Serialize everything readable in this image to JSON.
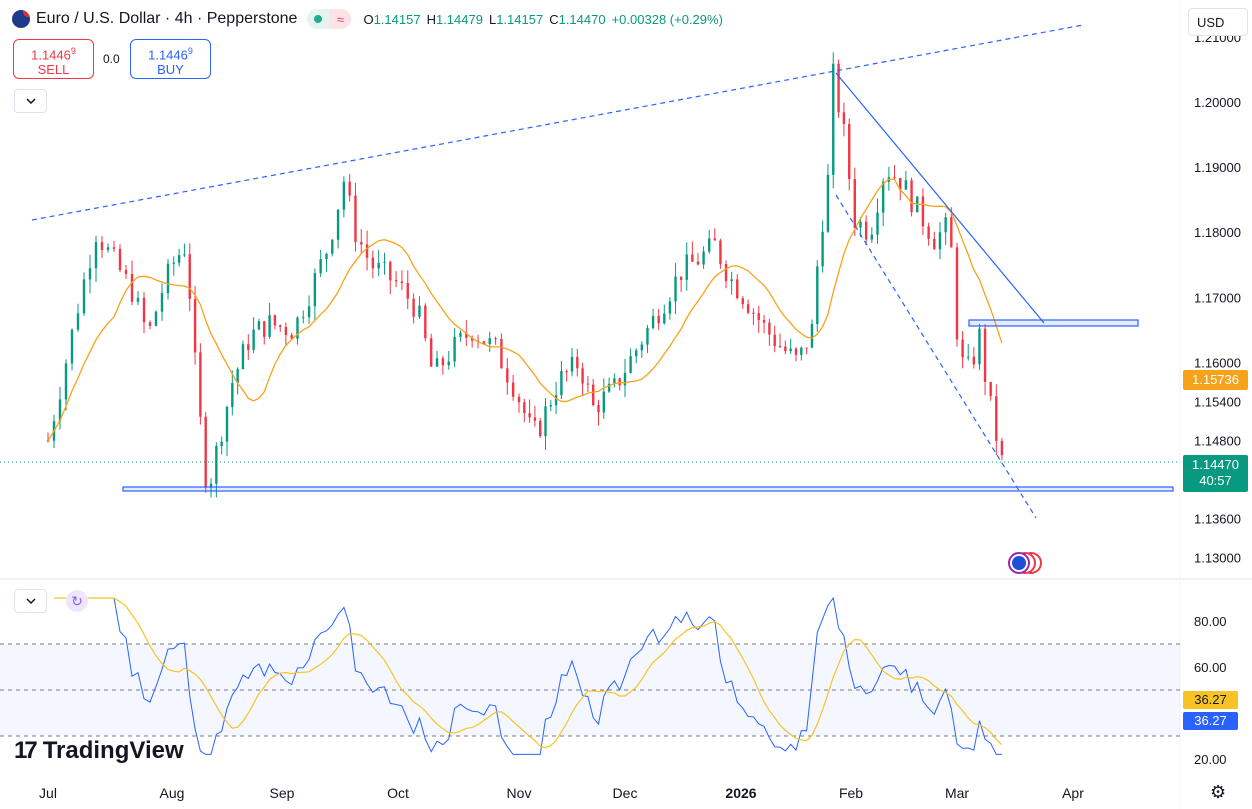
{
  "header": {
    "title": "Euro / U.S. Dollar · 4h · Pepperstone",
    "ohlc": [
      {
        "key": "O",
        "value": "1.14157"
      },
      {
        "key": "H",
        "value": "1.14479"
      },
      {
        "key": "L",
        "value": "1.14157"
      },
      {
        "key": "C",
        "value": "1.14470"
      }
    ],
    "change": "+0.00328 (+0.29%)"
  },
  "trade": {
    "sell_price": "1.1446",
    "sell_sup": "9",
    "sell_label": "SELL",
    "spread": "0.0",
    "buy_price": "1.1446",
    "buy_sup": "9",
    "buy_label": "BUY"
  },
  "currency": "USD",
  "branding": {
    "logo_mark": "17",
    "logo_text": "TradingView"
  },
  "icons": {
    "symbol": "flag-icon",
    "collapse": "chevron-down-icon",
    "settings": "gear-icon",
    "refresh": "refresh-icon"
  },
  "colors": {
    "up": "#089981",
    "down": "#f23645",
    "ma": "#f7a21b",
    "trend": "#2962ff",
    "rsi": "#2962ff",
    "rsi_ma": "#f7c325",
    "price_tag": "#089981",
    "ma_tag": "#f7a21b"
  },
  "chart_data": [
    {
      "type": "candlestick",
      "symbol": "EURUSD",
      "timeframe": "4h",
      "x_ticks": [
        "Jul",
        "Aug",
        "Sep",
        "Oct",
        "Nov",
        "Dec",
        "2026",
        "Feb",
        "Mar",
        "Apr"
      ],
      "y_ticks": [
        "1.21000",
        "1.20000",
        "1.19000",
        "1.18000",
        "1.17000",
        "1.16000",
        "1.15400",
        "1.14800",
        "1.13600",
        "1.13000"
      ],
      "ylim": [
        1.127,
        1.212
      ],
      "last_price": "1.14470",
      "countdown": "40:57",
      "ma_value": "1.15736",
      "close_path": [
        {
          "x": "Jul 01",
          "y": 1.148
        },
        {
          "x": "Jul 04",
          "y": 1.156
        },
        {
          "x": "Jul 09",
          "y": 1.17
        },
        {
          "x": "Jul 13",
          "y": 1.18
        },
        {
          "x": "Jul 17",
          "y": 1.176
        },
        {
          "x": "Jul 22",
          "y": 1.171
        },
        {
          "x": "Jul 26",
          "y": 1.164
        },
        {
          "x": "Jul 30",
          "y": 1.172
        },
        {
          "x": "Aug 02",
          "y": 1.176
        },
        {
          "x": "Aug 05",
          "y": 1.178
        },
        {
          "x": "Aug 08",
          "y": 1.156
        },
        {
          "x": "Aug 11",
          "y": 1.14
        },
        {
          "x": "Aug 13",
          "y": 1.145
        },
        {
          "x": "Aug 18",
          "y": 1.157
        },
        {
          "x": "Aug 23",
          "y": 1.164
        },
        {
          "x": "Aug 28",
          "y": 1.166
        },
        {
          "x": "Sep 04",
          "y": 1.165
        },
        {
          "x": "Sep 09",
          "y": 1.172
        },
        {
          "x": "Sep 13",
          "y": 1.178
        },
        {
          "x": "Sep 17",
          "y": 1.188
        },
        {
          "x": "Sep 20",
          "y": 1.18
        },
        {
          "x": "Sep 24",
          "y": 1.175
        },
        {
          "x": "Oct 01",
          "y": 1.172
        },
        {
          "x": "Oct 06",
          "y": 1.168
        },
        {
          "x": "Oct 10",
          "y": 1.158
        },
        {
          "x": "Oct 15",
          "y": 1.162
        },
        {
          "x": "Oct 20",
          "y": 1.165
        },
        {
          "x": "Oct 26",
          "y": 1.162
        },
        {
          "x": "Oct 31",
          "y": 1.156
        },
        {
          "x": "Nov 04",
          "y": 1.15
        },
        {
          "x": "Nov 06",
          "y": 1.149
        },
        {
          "x": "Nov 12",
          "y": 1.157
        },
        {
          "x": "Nov 18",
          "y": 1.16
        },
        {
          "x": "Nov 22",
          "y": 1.153
        },
        {
          "x": "Nov 28",
          "y": 1.156
        },
        {
          "x": "Dec 04",
          "y": 1.162
        },
        {
          "x": "Dec 10",
          "y": 1.168
        },
        {
          "x": "Dec 16",
          "y": 1.174
        },
        {
          "x": "Dec 21",
          "y": 1.176
        },
        {
          "x": "Dec 25",
          "y": 1.178
        },
        {
          "x": "Dec 29",
          "y": 1.173
        },
        {
          "x": "Jan 02",
          "y": 1.17
        },
        {
          "x": "Jan 08",
          "y": 1.165
        },
        {
          "x": "Jan 13",
          "y": 1.162
        },
        {
          "x": "Jan 17",
          "y": 1.16
        },
        {
          "x": "Jan 21",
          "y": 1.165
        },
        {
          "x": "Jan 23",
          "y": 1.178
        },
        {
          "x": "Jan 26",
          "y": 1.19
        },
        {
          "x": "Jan 27",
          "y": 1.204
        },
        {
          "x": "Jan 30",
          "y": 1.195
        },
        {
          "x": "Feb 02",
          "y": 1.182
        },
        {
          "x": "Feb 06",
          "y": 1.18
        },
        {
          "x": "Feb 10",
          "y": 1.19
        },
        {
          "x": "Feb 14",
          "y": 1.188
        },
        {
          "x": "Feb 19",
          "y": 1.183
        },
        {
          "x": "Feb 23",
          "y": 1.179
        },
        {
          "x": "Feb 27",
          "y": 1.181
        },
        {
          "x": "Mar 01",
          "y": 1.165
        },
        {
          "x": "Mar 03",
          "y": 1.158
        },
        {
          "x": "Mar 05",
          "y": 1.16
        },
        {
          "x": "Mar 07",
          "y": 1.164
        },
        {
          "x": "Mar 09",
          "y": 1.156
        },
        {
          "x": "Mar 11",
          "y": 1.15
        },
        {
          "x": "Mar 13",
          "y": 1.1447
        }
      ]
    },
    {
      "type": "line",
      "indicator": "RSI",
      "y_ticks": [
        "80.00",
        "60.00",
        "20.00"
      ],
      "bands": [
        70,
        30
      ],
      "midline": 50,
      "ylim": [
        15,
        92
      ],
      "rsi_value": "36.27",
      "rsi_ma_value": "36.27"
    }
  ]
}
